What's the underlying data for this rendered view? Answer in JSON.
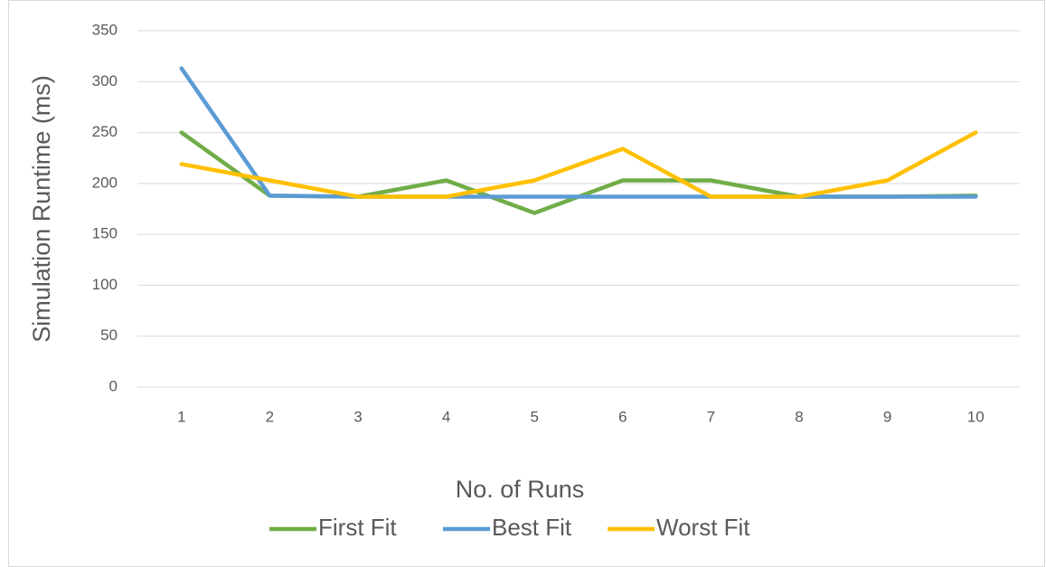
{
  "chart_data": {
    "type": "line",
    "x_label": "No. of Runs",
    "y_label": "Simulation Runtime (ms)",
    "categories": [
      "1",
      "2",
      "3",
      "4",
      "5",
      "6",
      "7",
      "8",
      "9",
      "10"
    ],
    "series": [
      {
        "name": "First Fit",
        "color": "#70ad47",
        "values": [
          250,
          188,
          187,
          203,
          171,
          203,
          203,
          187,
          187,
          188
        ]
      },
      {
        "name": "Best Fit",
        "color": "#5b9bd5",
        "values": [
          313,
          188,
          187,
          187,
          187,
          187,
          187,
          187,
          187,
          187
        ]
      },
      {
        "name": "Worst Fit",
        "color": "#ffc000",
        "values": [
          219,
          203,
          187,
          187,
          203,
          234,
          187,
          187,
          203,
          250
        ]
      }
    ],
    "ylim": [
      0,
      350
    ],
    "yticks": [
      0,
      50,
      100,
      150,
      200,
      250,
      300,
      350
    ],
    "grid": true,
    "legend": "bottom"
  }
}
